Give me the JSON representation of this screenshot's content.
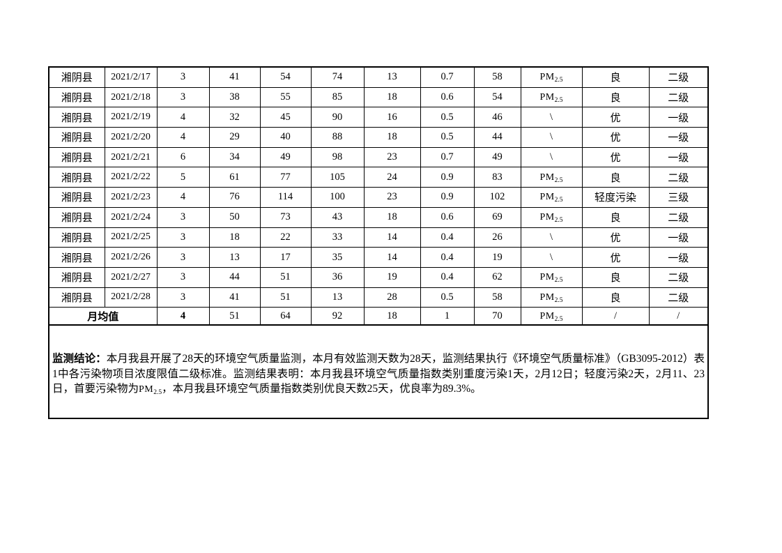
{
  "table": {
    "columns_count": 12,
    "rows": [
      [
        "湘阴县",
        "2021/2/17",
        "3",
        "41",
        "54",
        "74",
        "13",
        "0.7",
        "58",
        "PM2.5",
        "良",
        "二级"
      ],
      [
        "湘阴县",
        "2021/2/18",
        "3",
        "38",
        "55",
        "85",
        "18",
        "0.6",
        "54",
        "PM2.5",
        "良",
        "二级"
      ],
      [
        "湘阴县",
        "2021/2/19",
        "4",
        "32",
        "45",
        "90",
        "16",
        "0.5",
        "46",
        "\\",
        "优",
        "一级"
      ],
      [
        "湘阴县",
        "2021/2/20",
        "4",
        "29",
        "40",
        "88",
        "18",
        "0.5",
        "44",
        "\\",
        "优",
        "一级"
      ],
      [
        "湘阴县",
        "2021/2/21",
        "6",
        "34",
        "49",
        "98",
        "23",
        "0.7",
        "49",
        "\\",
        "优",
        "一级"
      ],
      [
        "湘阴县",
        "2021/2/22",
        "5",
        "61",
        "77",
        "105",
        "24",
        "0.9",
        "83",
        "PM2.5",
        "良",
        "二级"
      ],
      [
        "湘阴县",
        "2021/2/23",
        "4",
        "76",
        "114",
        "100",
        "23",
        "0.9",
        "102",
        "PM2.5",
        "轻度污染",
        "三级"
      ],
      [
        "湘阴县",
        "2021/2/24",
        "3",
        "50",
        "73",
        "43",
        "18",
        "0.6",
        "69",
        "PM2.5",
        "良",
        "二级"
      ],
      [
        "湘阴县",
        "2021/2/25",
        "3",
        "18",
        "22",
        "33",
        "14",
        "0.4",
        "26",
        "\\",
        "优",
        "一级"
      ],
      [
        "湘阴县",
        "2021/2/26",
        "3",
        "13",
        "17",
        "35",
        "14",
        "0.4",
        "19",
        "\\",
        "优",
        "一级"
      ],
      [
        "湘阴县",
        "2021/2/27",
        "3",
        "44",
        "51",
        "36",
        "19",
        "0.4",
        "62",
        "PM2.5",
        "良",
        "二级"
      ],
      [
        "湘阴县",
        "2021/2/28",
        "3",
        "41",
        "51",
        "13",
        "28",
        "0.5",
        "58",
        "PM2.5",
        "良",
        "二级"
      ]
    ],
    "summary_row": {
      "label": "月均值",
      "values": [
        "4",
        "51",
        "64",
        "92",
        "18",
        "1",
        "70",
        "PM2.5",
        "/",
        "/"
      ]
    }
  },
  "conclusion": {
    "heading": "监测结论：",
    "body": "本月我县开展了28天的环境空气质量监测，本月有效监测天数为28天，监测结果执行《环境空气质量标准》（GB3095-2012）表1中各污染物项目浓度限值二级标准。监测结果表明：本月我县环境空气质量指数类别重度污染1天，2月12日；轻度污染2天，2月11、23日，首要污染物为PM2.5，本月我县环境空气质量指数类别优良天数25天，优良率为89.3%。"
  },
  "colors": {
    "text": "#000000",
    "border": "#000000",
    "background": "#ffffff"
  }
}
